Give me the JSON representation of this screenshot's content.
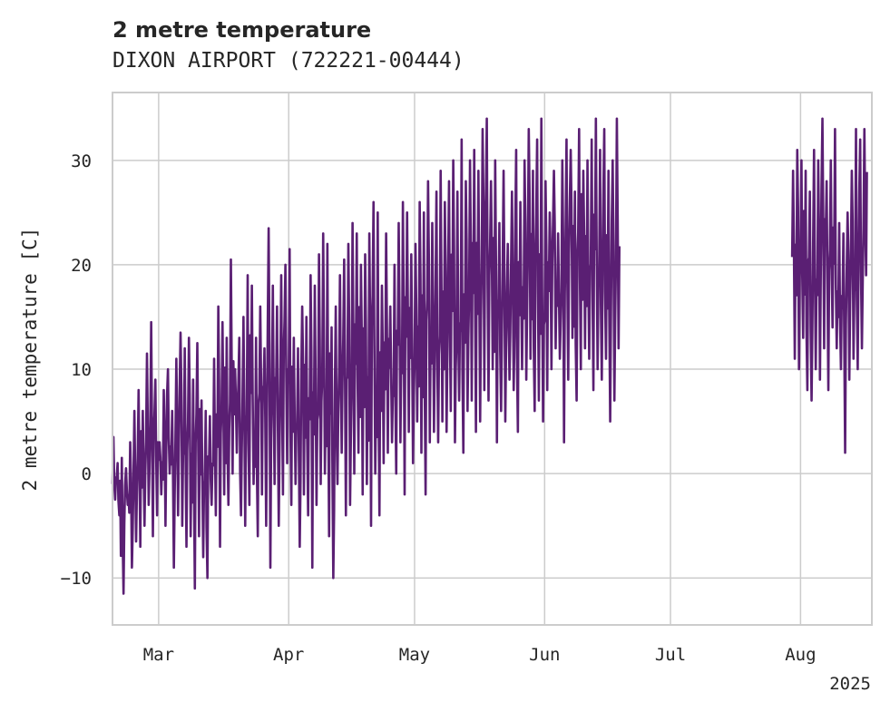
{
  "chart_data": {
    "type": "line",
    "title": "2 metre temperature",
    "subtitle": "DIXON AIRPORT (722221-00444)",
    "xlabel": "",
    "ylabel": "2 metre temperature [C]",
    "x_offset_label": "2025",
    "xlim": [
      "2025-02-18",
      "2025-08-18"
    ],
    "ylim": [
      -14.5,
      36.5
    ],
    "y_ticks": [
      -10,
      0,
      10,
      20,
      30
    ],
    "y_tick_labels": [
      "−10",
      "0",
      "10",
      "20",
      "30"
    ],
    "x_ticks": [
      "2025-03-01",
      "2025-04-01",
      "2025-05-01",
      "2025-06-01",
      "2025-07-01",
      "2025-08-01"
    ],
    "x_tick_labels": [
      "Mar",
      "Apr",
      "May",
      "Jun",
      "Jul",
      "Aug"
    ],
    "grid": true,
    "legend": "none",
    "line_color": "#5a1f73",
    "series": [
      {
        "segments": [
          {
            "x": [
              "2025-02-18",
              "2025-02-19",
              "2025-02-20",
              "2025-02-21",
              "2025-02-22",
              "2025-02-23",
              "2025-02-24",
              "2025-02-25",
              "2025-02-26",
              "2025-02-27",
              "2025-02-28",
              "2025-03-01",
              "2025-03-02",
              "2025-03-03",
              "2025-03-04",
              "2025-03-05",
              "2025-03-06",
              "2025-03-07",
              "2025-03-08",
              "2025-03-09",
              "2025-03-10",
              "2025-03-11",
              "2025-03-12",
              "2025-03-13",
              "2025-03-14",
              "2025-03-15",
              "2025-03-16",
              "2025-03-17",
              "2025-03-18",
              "2025-03-19",
              "2025-03-20",
              "2025-03-21",
              "2025-03-22",
              "2025-03-23",
              "2025-03-24",
              "2025-03-25",
              "2025-03-26",
              "2025-03-27",
              "2025-03-28",
              "2025-03-29",
              "2025-03-30",
              "2025-03-31",
              "2025-04-01",
              "2025-04-02",
              "2025-04-03",
              "2025-04-04",
              "2025-04-05",
              "2025-04-06",
              "2025-04-07",
              "2025-04-08",
              "2025-04-09",
              "2025-04-10",
              "2025-04-11",
              "2025-04-12",
              "2025-04-13",
              "2025-04-14",
              "2025-04-15",
              "2025-04-16",
              "2025-04-17",
              "2025-04-18",
              "2025-04-19",
              "2025-04-20",
              "2025-04-21",
              "2025-04-22",
              "2025-04-23",
              "2025-04-24",
              "2025-04-25",
              "2025-04-26",
              "2025-04-27",
              "2025-04-28",
              "2025-04-29",
              "2025-04-30",
              "2025-05-01",
              "2025-05-02",
              "2025-05-03",
              "2025-05-04",
              "2025-05-05",
              "2025-05-06",
              "2025-05-07",
              "2025-05-08",
              "2025-05-09",
              "2025-05-10",
              "2025-05-11",
              "2025-05-12",
              "2025-05-13",
              "2025-05-14",
              "2025-05-15",
              "2025-05-16",
              "2025-05-17",
              "2025-05-18",
              "2025-05-19",
              "2025-05-20",
              "2025-05-21",
              "2025-05-22",
              "2025-05-23",
              "2025-05-24",
              "2025-05-25",
              "2025-05-26",
              "2025-05-27",
              "2025-05-28",
              "2025-05-29",
              "2025-05-30",
              "2025-05-31",
              "2025-06-01",
              "2025-06-02",
              "2025-06-03",
              "2025-06-04",
              "2025-06-05",
              "2025-06-06",
              "2025-06-07",
              "2025-06-08",
              "2025-06-09",
              "2025-06-10",
              "2025-06-11",
              "2025-06-12",
              "2025-06-13",
              "2025-06-14",
              "2025-06-15",
              "2025-06-16",
              "2025-06-17",
              "2025-06-18",
              "2025-06-19",
              "2025-06-20"
            ],
            "min": [
              -2.5,
              -4,
              -11.5,
              -3,
              -9,
              -6.5,
              -7,
              -5,
              -3,
              -6,
              -4,
              -2,
              -5,
              0,
              -9,
              -4,
              -5,
              -7,
              -6,
              -11,
              -6,
              -8,
              -10,
              -3,
              -4,
              -7,
              -2,
              -3,
              0,
              2,
              -4,
              -5,
              -3,
              -1,
              -6,
              -2,
              -5,
              -9,
              -1,
              -5,
              -2,
              1,
              -3,
              -1,
              -7,
              -2,
              -4,
              -9,
              -3,
              -1,
              0,
              -6,
              -10,
              -1,
              2,
              -4,
              -3,
              0,
              2,
              -2,
              -1,
              -5,
              0,
              -4,
              1,
              2,
              3,
              0,
              3,
              -2,
              4,
              1,
              5,
              2,
              -2,
              3,
              4,
              3,
              5,
              4,
              6,
              3,
              7,
              2,
              6,
              7,
              4,
              5,
              8,
              7,
              10,
              3,
              6,
              5,
              9,
              8,
              4,
              10,
              9,
              11,
              6,
              7,
              5,
              8,
              10,
              12,
              11,
              3,
              9,
              13,
              7,
              10,
              12,
              11,
              8,
              10,
              9,
              11,
              5,
              7,
              12
            ],
            "max": [
              3.5,
              1,
              1.5,
              0.5,
              3,
              6,
              8,
              6,
              11.5,
              14.5,
              9,
              3,
              8,
              10,
              6,
              11,
              13.5,
              12,
              13,
              9,
              12.5,
              7,
              6,
              5.5,
              11,
              16,
              14.5,
              13,
              20.5,
              10,
              13,
              15,
              19,
              18,
              13,
              16,
              12,
              23.5,
              18,
              16,
              19,
              20,
              21.5,
              13,
              12,
              16,
              15,
              19,
              18,
              21,
              23,
              22,
              14,
              16,
              19,
              20.5,
              22,
              24,
              23,
              20,
              21,
              23,
              26,
              25,
              18,
              23,
              16,
              20,
              24,
              26,
              25,
              21,
              22,
              26,
              25,
              28,
              24,
              27,
              29,
              26,
              28,
              30,
              27,
              32,
              28,
              30,
              31,
              29,
              33,
              34,
              28,
              30,
              24,
              29,
              22,
              27,
              31,
              26,
              30,
              33,
              29,
              32,
              34,
              28,
              25,
              29,
              23,
              30,
              32,
              31,
              27,
              33,
              29,
              30,
              32,
              34,
              31,
              33,
              29,
              30,
              34
            ]
          },
          {
            "x": [
              "2025-07-30",
              "2025-07-31",
              "2025-08-01",
              "2025-08-02",
              "2025-08-03",
              "2025-08-04",
              "2025-08-05",
              "2025-08-06",
              "2025-08-07",
              "2025-08-08",
              "2025-08-09",
              "2025-08-10",
              "2025-08-11",
              "2025-08-12",
              "2025-08-13",
              "2025-08-14",
              "2025-08-15",
              "2025-08-16"
            ],
            "min": [
              11,
              10,
              13,
              8,
              7,
              10,
              9,
              12,
              8,
              14,
              12,
              10,
              2,
              9,
              11,
              10,
              12,
              19
            ],
            "max": [
              29,
              31,
              30,
              29,
              27,
              31,
              30,
              34,
              28,
              30,
              33,
              24,
              23,
              25,
              29,
              33,
              32,
              33
            ]
          }
        ]
      }
    ]
  }
}
